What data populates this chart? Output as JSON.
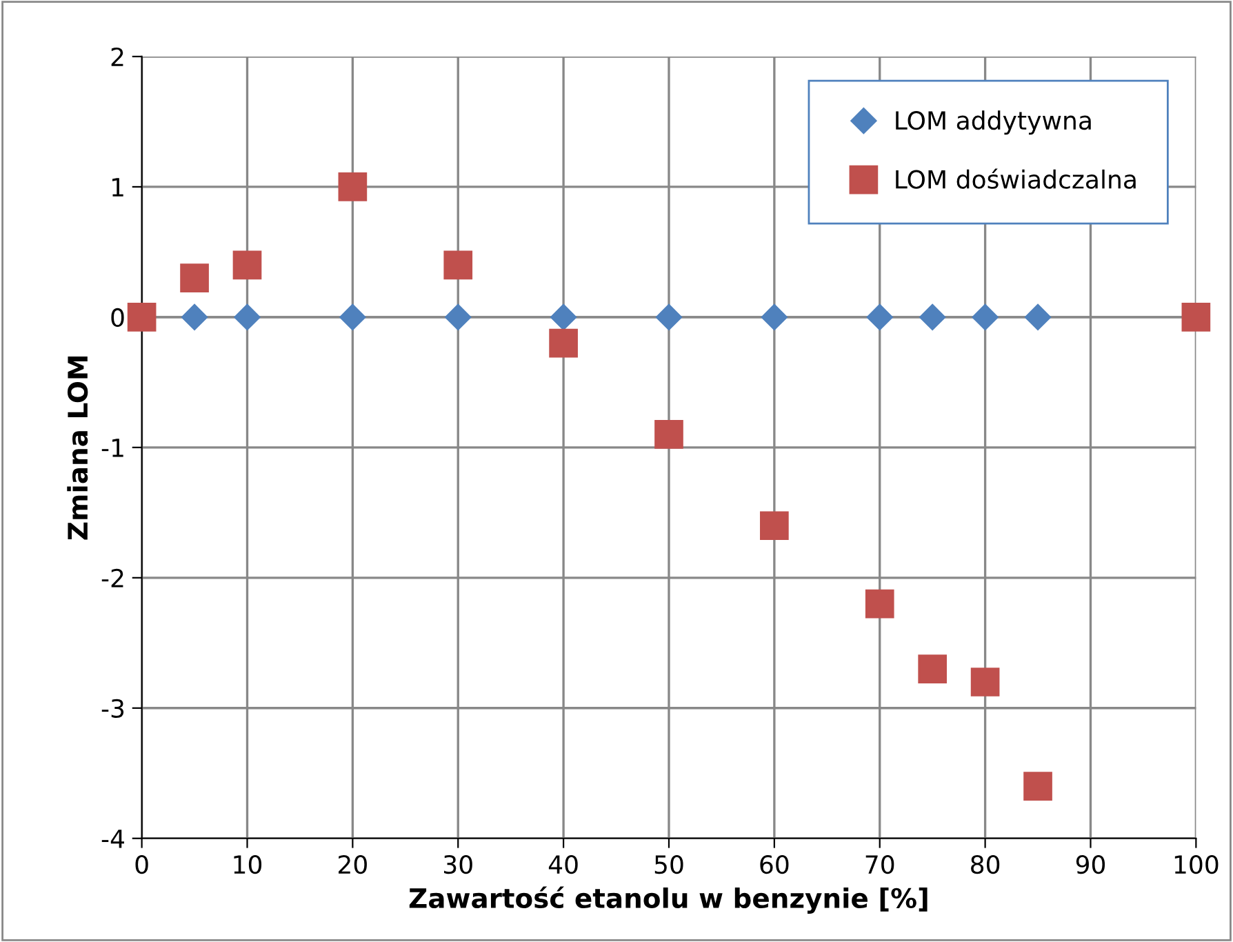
{
  "chart_data": {
    "type": "scatter",
    "xlabel": "Zawartość etanolu w benzynie [%]",
    "ylabel": "Zmiana LOM",
    "series": [
      {
        "name": "LOM addytywna",
        "color": "#4f81bd",
        "marker": "diamond",
        "x": [
          5,
          10,
          20,
          30,
          40,
          50,
          60,
          70,
          75,
          80,
          85
        ],
        "values": [
          0,
          0,
          0,
          0,
          0,
          0,
          0,
          0,
          0,
          0,
          0
        ]
      },
      {
        "name": "LOM doświadczalna",
        "color": "#c0504d",
        "marker": "square",
        "x": [
          0,
          5,
          10,
          20,
          30,
          40,
          50,
          60,
          70,
          75,
          80,
          85,
          100
        ],
        "values": [
          0,
          0.3,
          0.4,
          1.0,
          0.4,
          -0.2,
          -0.9,
          -1.6,
          -2.2,
          -2.7,
          -2.8,
          -3.6,
          0
        ]
      }
    ],
    "xlim": [
      0,
      100
    ],
    "xticks": [
      0,
      10,
      20,
      30,
      40,
      50,
      60,
      70,
      80,
      90,
      100
    ],
    "ylim": [
      -4,
      2
    ],
    "yticks": [
      -4,
      -3,
      -2,
      -1,
      0,
      1,
      2
    ],
    "grid": true,
    "legend": "top right"
  }
}
